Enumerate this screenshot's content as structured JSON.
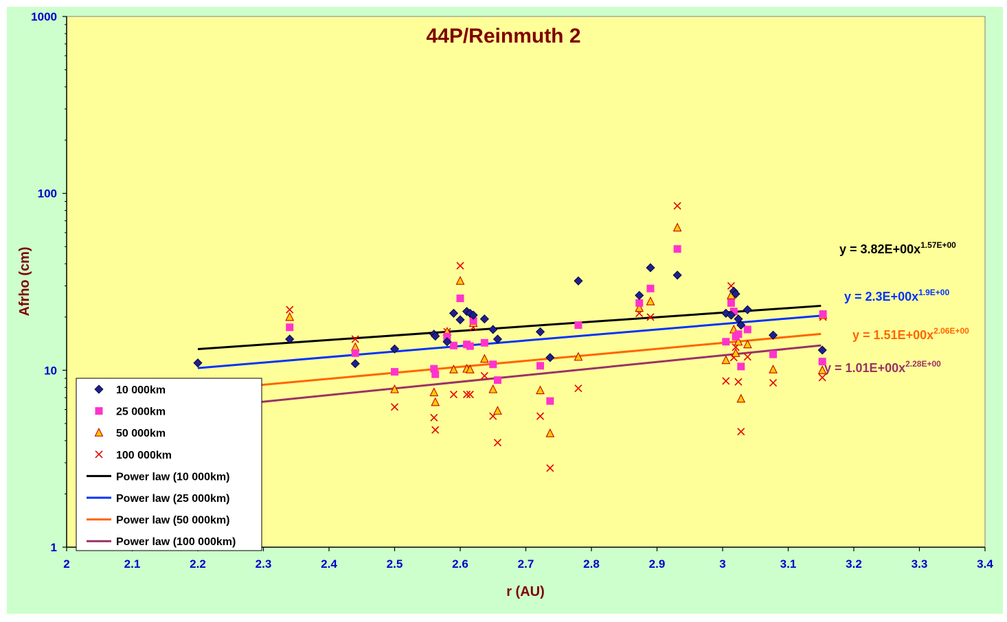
{
  "chart_data": {
    "type": "scatter",
    "title": "44P/Reinmuth 2",
    "xlabel": "r (AU)",
    "ylabel": "Afrho (cm)",
    "xlim": [
      2,
      3.4
    ],
    "ylim": [
      1,
      1000
    ],
    "y_scale": "log",
    "x_ticks": [
      "2",
      "2.1",
      "2.2",
      "2.3",
      "2.4",
      "2.5",
      "2.6",
      "2.7",
      "2.8",
      "2.9",
      "3",
      "3.1",
      "3.2",
      "3.3",
      "3.4"
    ],
    "y_ticks": [
      "1",
      "10",
      "100",
      "1000"
    ],
    "grid": false,
    "legend_position": "bottom-left",
    "colors": {
      "outer_background": "#ccffcc",
      "plot_background": "#ffff99",
      "title": "#7f0000",
      "axis_label": "#7f0000",
      "tick_label": "#0000cc"
    },
    "series": [
      {
        "name": "10 000km",
        "marker": "diamond",
        "color": "#1f1f8c",
        "points": [
          [
            2.2,
            11.0
          ],
          [
            2.34,
            15.0
          ],
          [
            2.44,
            10.9
          ],
          [
            2.5,
            13.2
          ],
          [
            2.56,
            16.0
          ],
          [
            2.562,
            15.6
          ],
          [
            2.58,
            14.5
          ],
          [
            2.59,
            21.0
          ],
          [
            2.6,
            19.3
          ],
          [
            2.61,
            21.5
          ],
          [
            2.615,
            21.0
          ],
          [
            2.62,
            20.5
          ],
          [
            2.637,
            19.5
          ],
          [
            2.65,
            17.0
          ],
          [
            2.657,
            15.0
          ],
          [
            2.722,
            16.5
          ],
          [
            2.737,
            11.8
          ],
          [
            2.78,
            32.0
          ],
          [
            2.873,
            26.5
          ],
          [
            2.89,
            38.0
          ],
          [
            2.931,
            34.5
          ],
          [
            3.005,
            21.0
          ],
          [
            3.013,
            20.5
          ],
          [
            3.017,
            28.0
          ],
          [
            3.02,
            27.0
          ],
          [
            3.024,
            19.5
          ],
          [
            3.028,
            18.0
          ],
          [
            3.038,
            22.0
          ],
          [
            3.077,
            15.8
          ],
          [
            3.152,
            13.0
          ]
        ]
      },
      {
        "name": "25 000km",
        "marker": "square",
        "color": "#ff33cc",
        "points": [
          [
            2.34,
            17.5
          ],
          [
            2.44,
            12.5
          ],
          [
            2.5,
            9.8
          ],
          [
            2.56,
            10.2
          ],
          [
            2.562,
            9.5
          ],
          [
            2.58,
            15.5
          ],
          [
            2.59,
            13.8
          ],
          [
            2.6,
            25.5
          ],
          [
            2.61,
            14.0
          ],
          [
            2.615,
            13.7
          ],
          [
            2.62,
            19.0
          ],
          [
            2.637,
            14.3
          ],
          [
            2.65,
            10.8
          ],
          [
            2.657,
            8.8
          ],
          [
            2.722,
            10.6
          ],
          [
            2.737,
            6.7
          ],
          [
            2.78,
            18.0
          ],
          [
            2.873,
            24.0
          ],
          [
            2.89,
            29.0
          ],
          [
            2.931,
            48.5
          ],
          [
            3.005,
            14.5
          ],
          [
            3.013,
            24.0
          ],
          [
            3.017,
            21.5
          ],
          [
            3.02,
            15.5
          ],
          [
            3.024,
            16.0
          ],
          [
            3.028,
            10.5
          ],
          [
            3.038,
            17.0
          ],
          [
            3.077,
            12.3
          ],
          [
            3.152,
            11.2
          ],
          [
            3.153,
            20.8
          ]
        ]
      },
      {
        "name": "50 000km",
        "marker": "triangle",
        "color": "#ffcc00",
        "points": [
          [
            2.34,
            20.0
          ],
          [
            2.44,
            13.5
          ],
          [
            2.5,
            7.8
          ],
          [
            2.56,
            7.5
          ],
          [
            2.562,
            6.6
          ],
          [
            2.58,
            16.5
          ],
          [
            2.59,
            10.1
          ],
          [
            2.6,
            32.0
          ],
          [
            2.61,
            10.2
          ],
          [
            2.615,
            10.1
          ],
          [
            2.62,
            18.5
          ],
          [
            2.637,
            11.6
          ],
          [
            2.65,
            7.8
          ],
          [
            2.657,
            5.9
          ],
          [
            2.722,
            7.7
          ],
          [
            2.737,
            4.4
          ],
          [
            2.78,
            11.9
          ],
          [
            2.873,
            22.5
          ],
          [
            2.89,
            24.5
          ],
          [
            2.931,
            64.0
          ],
          [
            3.005,
            11.4
          ],
          [
            3.013,
            26.5
          ],
          [
            3.017,
            17.0
          ],
          [
            3.02,
            12.5
          ],
          [
            3.024,
            14.5
          ],
          [
            3.028,
            6.9
          ],
          [
            3.038,
            14.0
          ],
          [
            3.077,
            10.1
          ],
          [
            3.152,
            10.0
          ],
          [
            3.153,
            20.5
          ]
        ]
      },
      {
        "name": "100 000km",
        "marker": "x",
        "color": "#e60000",
        "points": [
          [
            2.34,
            22.0
          ],
          [
            2.44,
            15.0
          ],
          [
            2.5,
            6.2
          ],
          [
            2.56,
            5.4
          ],
          [
            2.562,
            4.6
          ],
          [
            2.58,
            16.5
          ],
          [
            2.59,
            7.3
          ],
          [
            2.6,
            39.0
          ],
          [
            2.61,
            7.3
          ],
          [
            2.615,
            7.3
          ],
          [
            2.62,
            17.5
          ],
          [
            2.637,
            9.3
          ],
          [
            2.65,
            5.5
          ],
          [
            2.657,
            3.9
          ],
          [
            2.722,
            5.5
          ],
          [
            2.737,
            2.8
          ],
          [
            2.78,
            7.9
          ],
          [
            2.873,
            21.0
          ],
          [
            2.89,
            20.0
          ],
          [
            2.931,
            85.0
          ],
          [
            3.005,
            8.7
          ],
          [
            3.013,
            30.0
          ],
          [
            3.017,
            11.8
          ],
          [
            3.02,
            13.5
          ],
          [
            3.024,
            8.6
          ],
          [
            3.028,
            4.5
          ],
          [
            3.038,
            11.9
          ],
          [
            3.077,
            8.5
          ],
          [
            3.152,
            9.1
          ],
          [
            3.153,
            20.0
          ]
        ]
      }
    ],
    "trendlines": [
      {
        "name": "Power law (10 000km)",
        "color": "#000000",
        "x_range": [
          2.2,
          3.15
        ],
        "a": 3.82,
        "b": 1.57,
        "equation_main": "y = 3.82E+00x",
        "equation_exp": "1.57E+00"
      },
      {
        "name": "Power law (25 000km)",
        "color": "#0033ff",
        "x_range": [
          2.2,
          3.15
        ],
        "a": 2.3,
        "b": 1.9,
        "equation_main": "y = 2.3E+00x",
        "equation_exp": "1.9E+00"
      },
      {
        "name": "Power law (50 000km)",
        "color": "#ff6600",
        "x_range": [
          2.2,
          3.15
        ],
        "a": 1.51,
        "b": 2.06,
        "equation_main": "y = 1.51E+00x",
        "equation_exp": "2.06E+00"
      },
      {
        "name": "Power law (100 000km)",
        "color": "#993366",
        "x_range": [
          2.2,
          3.15
        ],
        "a": 1.01,
        "b": 2.28,
        "equation_main": "y = 1.01E+00x",
        "equation_exp": "2.28E+00"
      }
    ]
  }
}
